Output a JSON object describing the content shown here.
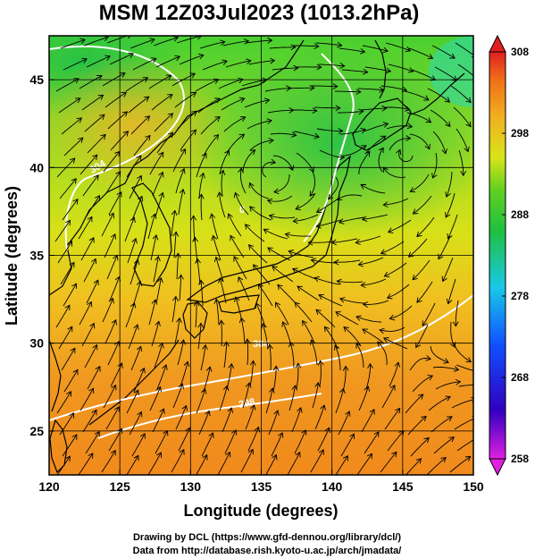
{
  "title": "MSM 12Z03Jul2023 (1013.2hPa)",
  "xlabel": "Longitude (degrees)",
  "ylabel": "Latitude  (degrees)",
  "footer": {
    "line1": "Drawing by DCL (https://www.gfd-dennou.org/library/dcl/)",
    "line2": "Data from http://database.rish.kyoto-u.ac.jp/arch/jmadata/"
  },
  "contour_labels": [
    "304",
    "0",
    "304",
    "298"
  ],
  "colors": {
    "cool": "#22cc44",
    "mid": "#c8e018",
    "warm": "#f0a020",
    "hot": "#f07818",
    "streamline": "#000000",
    "contour": "#ffffff",
    "coast": "#000000"
  },
  "chart_data": {
    "type": "map",
    "field": "temperature at 1013.2 hPa (K) with wind streamlines",
    "xlim": [
      120,
      150
    ],
    "ylim": [
      22.5,
      47.5
    ],
    "xticks": [
      120,
      125,
      130,
      135,
      140,
      145,
      150
    ],
    "yticks": [
      25,
      30,
      35,
      40,
      45
    ],
    "grid": true,
    "colorbar": {
      "vmin": 258,
      "vmax": 308,
      "ticks": [
        258,
        268,
        278,
        288,
        298,
        308
      ],
      "placement": "right",
      "extend": "both"
    }
  }
}
